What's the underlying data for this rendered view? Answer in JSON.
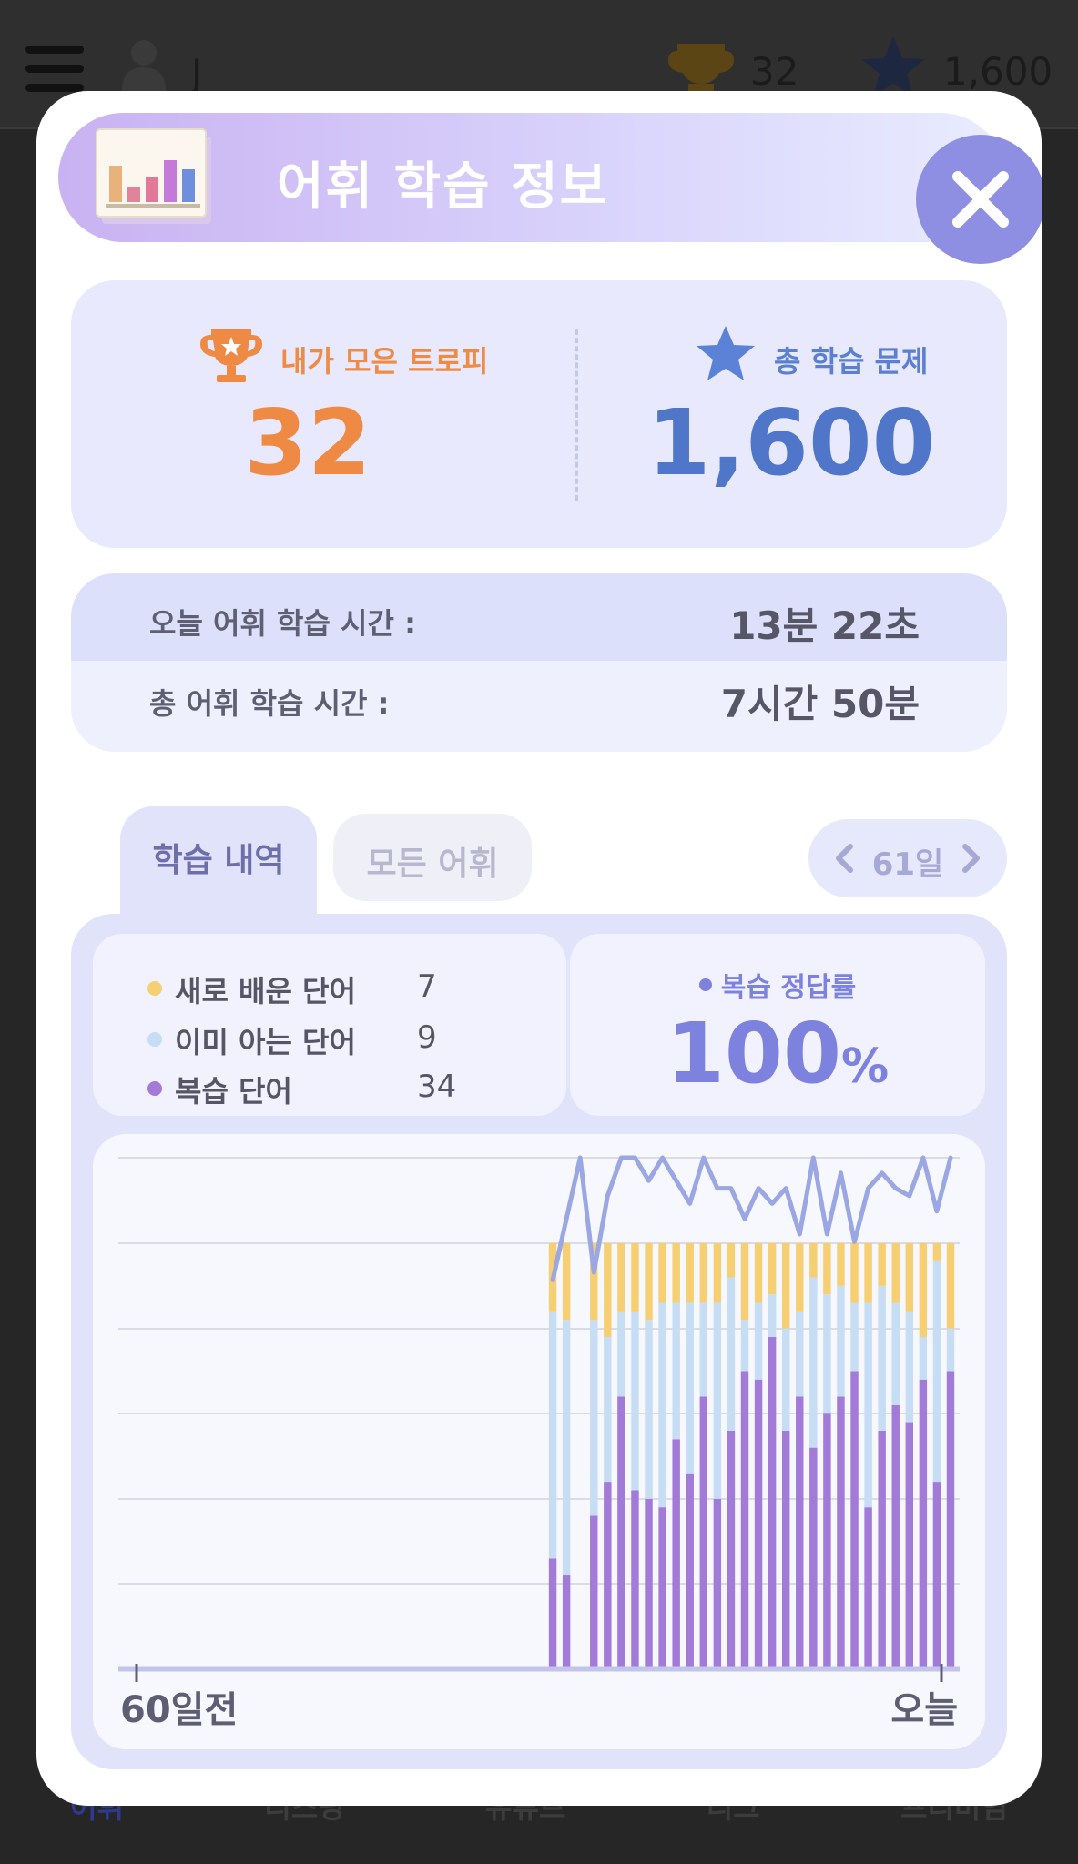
{
  "app": {
    "username": "J_",
    "trophy_count": "32",
    "star_count": "1,600",
    "bottom_nav": [
      "어휘",
      "리스닝",
      "유튜브",
      "리그",
      "프리미엄"
    ]
  },
  "modal": {
    "title": "어휘 학습 정보",
    "stats": {
      "trophy_label": "내가 모은 트로피",
      "trophy_value": "32",
      "problems_label": "총 학습 문제",
      "problems_value": "1,600"
    },
    "time": {
      "today_label": "오늘 어휘 학습 시간 :",
      "today_value": "13분 22초",
      "total_label": "총 어휘 학습 시간 :",
      "total_value": "7시간 50분"
    },
    "tabs": [
      {
        "label": "학습 내역",
        "active": true
      },
      {
        "label": "모든 어휘",
        "active": false
      }
    ],
    "period": "61일",
    "legend": [
      {
        "label": "새로 배운 단어",
        "count": "7",
        "color": "#f6cf72"
      },
      {
        "label": "이미 아는 단어",
        "count": "9",
        "color": "#c6ddf3"
      },
      {
        "label": "복습 단어",
        "count": "34",
        "color": "#a27ad8"
      }
    ],
    "review_rate": {
      "label": "복습 정답률",
      "value": "100",
      "unit": "%"
    }
  },
  "chart_data": {
    "type": "bar",
    "stacked": true,
    "x_start_label": "60일전",
    "x_end_label": "오늘",
    "days": 61,
    "grid": true,
    "series": [
      {
        "key": "review",
        "color": "#a27ad8",
        "values": [
          0,
          0,
          0,
          0,
          0,
          0,
          0,
          0,
          0,
          0,
          0,
          0,
          0,
          0,
          0,
          0,
          0,
          0,
          0,
          0,
          0,
          0,
          0,
          0,
          0,
          0,
          0,
          0,
          0,
          0,
          0,
          13,
          11,
          0,
          18,
          22,
          32,
          21,
          20,
          19,
          27,
          23,
          32,
          20,
          28,
          35,
          34,
          39,
          28,
          32,
          26,
          30,
          32,
          35,
          19,
          28,
          31,
          29,
          34,
          22,
          35
        ]
      },
      {
        "key": "known",
        "color": "#c6ddf3",
        "values": [
          0,
          0,
          0,
          0,
          0,
          0,
          0,
          0,
          0,
          0,
          0,
          0,
          0,
          0,
          0,
          0,
          0,
          0,
          0,
          0,
          0,
          0,
          0,
          0,
          0,
          0,
          0,
          0,
          0,
          0,
          0,
          29,
          30,
          0,
          23,
          17,
          10,
          21,
          21,
          24,
          16,
          20,
          11,
          23,
          18,
          6,
          9,
          5,
          12,
          10,
          20,
          14,
          13,
          8,
          24,
          17,
          12,
          13,
          5,
          26,
          5
        ]
      },
      {
        "key": "new",
        "color": "#f6cf72",
        "values": [
          0,
          0,
          0,
          0,
          0,
          0,
          0,
          0,
          0,
          0,
          0,
          0,
          0,
          0,
          0,
          0,
          0,
          0,
          0,
          0,
          0,
          0,
          0,
          0,
          0,
          0,
          0,
          0,
          0,
          0,
          0,
          8,
          9,
          0,
          9,
          11,
          8,
          8,
          9,
          7,
          7,
          7,
          7,
          7,
          4,
          9,
          7,
          6,
          10,
          8,
          4,
          6,
          5,
          7,
          7,
          5,
          7,
          8,
          11,
          2,
          10
        ]
      },
      {
        "key": "accuracy",
        "type": "line",
        "color": "#9aa7e3",
        "values": [
          null,
          null,
          null,
          null,
          null,
          null,
          null,
          null,
          null,
          null,
          null,
          null,
          null,
          null,
          null,
          null,
          null,
          null,
          null,
          null,
          null,
          null,
          null,
          null,
          null,
          null,
          null,
          null,
          null,
          null,
          null,
          84,
          92,
          100,
          85,
          95,
          100,
          100,
          97,
          100,
          97,
          94,
          100,
          96,
          96,
          92,
          96,
          94,
          96,
          90,
          100,
          90,
          98,
          89,
          96,
          98,
          96,
          95,
          100,
          93,
          100
        ]
      }
    ],
    "y_max_bars": 50
  }
}
